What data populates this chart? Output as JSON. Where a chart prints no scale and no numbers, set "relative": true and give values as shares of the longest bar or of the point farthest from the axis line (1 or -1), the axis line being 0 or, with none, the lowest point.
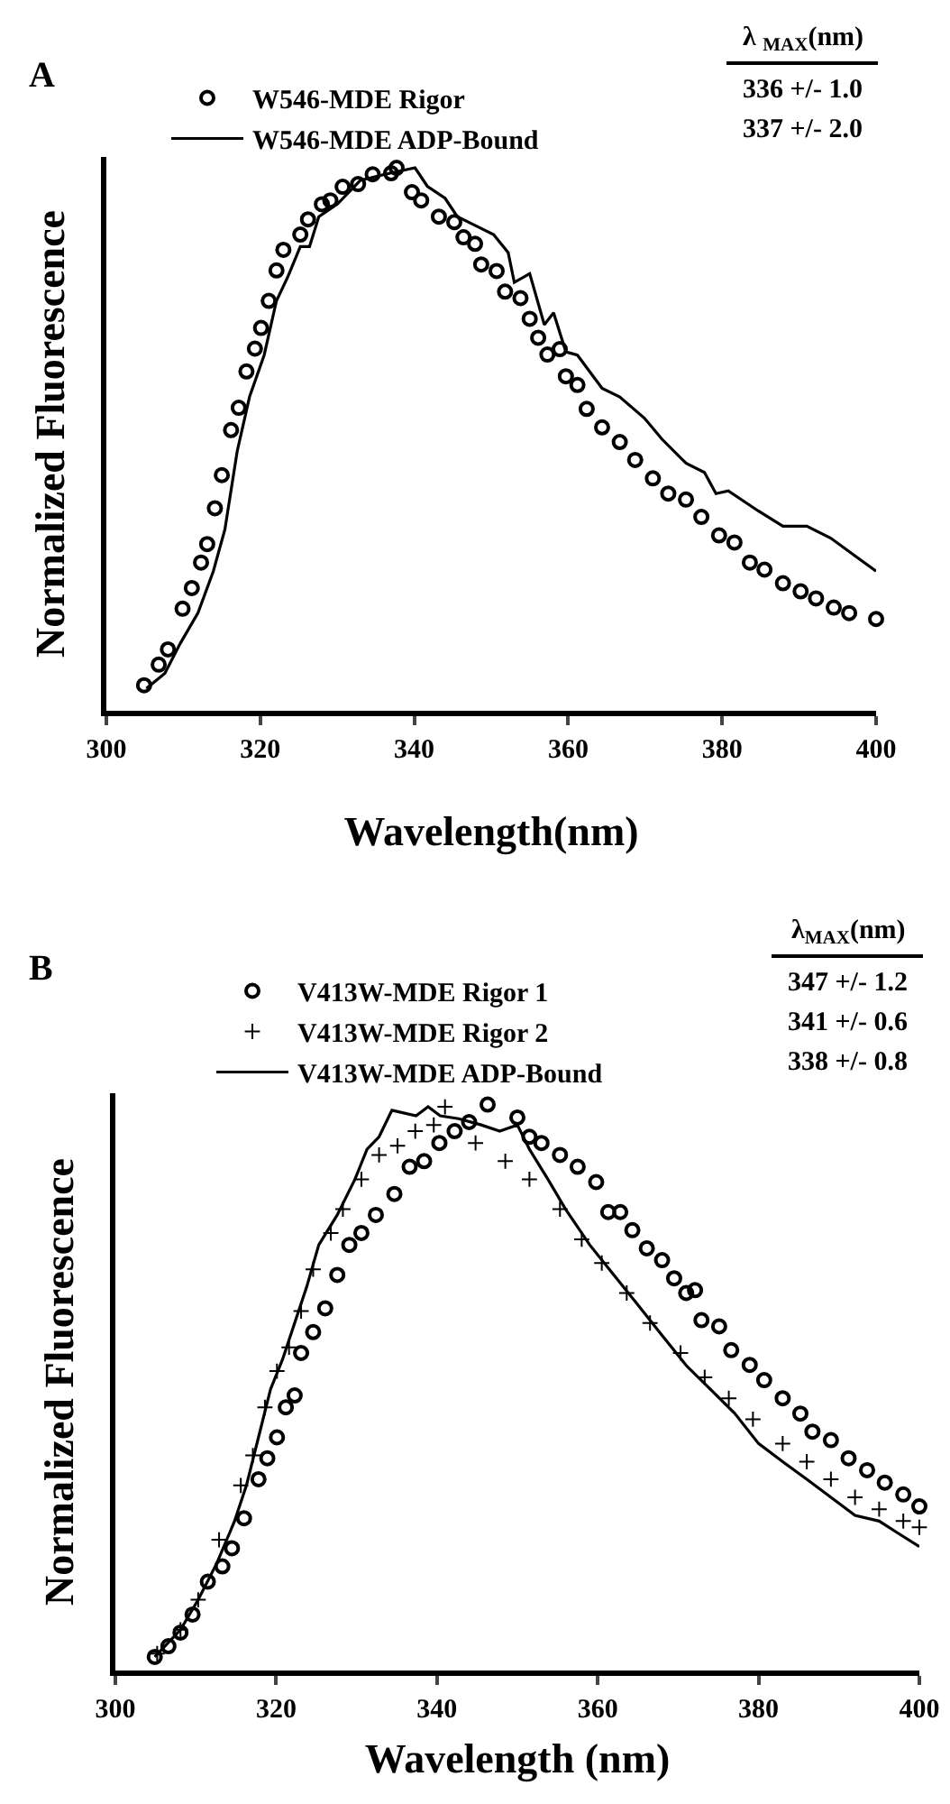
{
  "chart_data": [
    {
      "type": "line",
      "title": "A",
      "xlabel": "Wavelength(nm)",
      "ylabel": "Normalized Fluorescence",
      "relative": true,
      "xlim": [
        300,
        400
      ],
      "xticks": [
        300,
        320,
        340,
        360,
        380,
        400
      ],
      "legend": "top left",
      "annotations": [
        "λ $_{MAX}$(nm)",
        "336 +/- 1.0",
        "337 +/- 2.0"
      ],
      "series": [
        {
          "name": "W546-MDE Rigor",
          "type": "scatter",
          "marker": "circle",
          "color": "#000000",
          "x": [
            304.9,
            306.8,
            308,
            309.9,
            311.1,
            312.3,
            313.1,
            314.1,
            315,
            316.2,
            317.2,
            318.2,
            319.3,
            320.1,
            321.1,
            322.1,
            323,
            325.2,
            326.2,
            328,
            329.1,
            330.7,
            332.7,
            334.6,
            337,
            337.7,
            339.7,
            340.9,
            343.2,
            345.2,
            346.4,
            347.9,
            348.7,
            350.7,
            351.8,
            353.8,
            355,
            356.1,
            357.3,
            358.9,
            359.7,
            361.2,
            362.4,
            364.4,
            366.7,
            368.7,
            371,
            373,
            375.3,
            377.3,
            379.6,
            381.6,
            383.6,
            385.5,
            387.9,
            390.2,
            392.2,
            394.5,
            396.5,
            400
          ],
          "values": [
            0.047,
            0.085,
            0.113,
            0.188,
            0.226,
            0.273,
            0.307,
            0.373,
            0.434,
            0.517,
            0.558,
            0.625,
            0.667,
            0.705,
            0.755,
            0.811,
            0.849,
            0.877,
            0.905,
            0.933,
            0.94,
            0.965,
            0.97,
            0.988,
            0.99,
            1.0,
            0.955,
            0.94,
            0.91,
            0.9,
            0.872,
            0.86,
            0.822,
            0.81,
            0.772,
            0.76,
            0.722,
            0.687,
            0.656,
            0.666,
            0.616,
            0.6,
            0.556,
            0.522,
            0.495,
            0.462,
            0.428,
            0.4,
            0.389,
            0.357,
            0.323,
            0.31,
            0.273,
            0.26,
            0.235,
            0.22,
            0.207,
            0.19,
            0.18,
            0.169
          ]
        },
        {
          "name": "W546-MDE ADP-Bound",
          "line_style": "solid",
          "marker": "none",
          "color": "#000000",
          "x": [
            305.2,
            307.6,
            309.6,
            311.9,
            313.9,
            315.4,
            317,
            318.6,
            320.5,
            322.1,
            323.6,
            325.2,
            326.4,
            327.6,
            330,
            331.5,
            333,
            336.2,
            340.1,
            341.7,
            344,
            345.6,
            347.9,
            350.3,
            352.2,
            353,
            355,
            356.9,
            358.1,
            359.7,
            361.2,
            364.4,
            366.7,
            369.9,
            372.2,
            375.3,
            377.7,
            379.2,
            380.8,
            384.7,
            387.9,
            391,
            394.1,
            397.3,
            400
          ],
          "values": [
            0.041,
            0.069,
            0.124,
            0.18,
            0.257,
            0.334,
            0.478,
            0.578,
            0.655,
            0.755,
            0.8,
            0.855,
            0.855,
            0.91,
            0.933,
            0.955,
            0.977,
            0.988,
            1.0,
            0.966,
            0.944,
            0.91,
            0.894,
            0.877,
            0.844,
            0.789,
            0.805,
            0.711,
            0.733,
            0.661,
            0.655,
            0.594,
            0.578,
            0.539,
            0.5,
            0.456,
            0.439,
            0.4,
            0.405,
            0.368,
            0.34,
            0.34,
            0.318,
            0.285,
            0.257
          ]
        }
      ]
    },
    {
      "type": "line",
      "title": "B",
      "xlabel": "Wavelength (nm)",
      "ylabel": "Normalized Fluorescence",
      "relative": true,
      "xlim": [
        300,
        400
      ],
      "xticks": [
        300,
        320,
        340,
        360,
        380,
        400
      ],
      "legend": "top left",
      "annotations": [
        "λ$_{MAX}$(nm)",
        "347 +/- 1.2",
        "341 +/- 0.6",
        "338 +/- 0.8"
      ],
      "series": [
        {
          "name": "V413W-MDE Rigor 1",
          "type": "scatter",
          "marker": "circle",
          "color": "#000000",
          "x": [
            304.9,
            306.6,
            308.1,
            309.6,
            311.5,
            313.3,
            314.5,
            316,
            317.8,
            318.9,
            320.1,
            321.2,
            322.3,
            323.1,
            324.6,
            326.1,
            327.6,
            329.1,
            330.6,
            332.4,
            334.7,
            336.6,
            338.4,
            340.3,
            342.2,
            344,
            346.3,
            350,
            351.5,
            353,
            355.3,
            357.5,
            359.8,
            361.3,
            362.8,
            364.3,
            366.1,
            368,
            369.5,
            371,
            372.1,
            372.9,
            375.1,
            376.6,
            378.9,
            380.7,
            383,
            385.2,
            386.7,
            389,
            391.2,
            393.5,
            395.7,
            398,
            400
          ],
          "values": [
            0.024,
            0.043,
            0.067,
            0.099,
            0.157,
            0.184,
            0.216,
            0.269,
            0.338,
            0.375,
            0.412,
            0.465,
            0.486,
            0.561,
            0.598,
            0.64,
            0.699,
            0.752,
            0.773,
            0.805,
            0.842,
            0.89,
            0.9,
            0.932,
            0.953,
            0.969,
            1.0,
            0.977,
            0.943,
            0.932,
            0.911,
            0.89,
            0.863,
            0.81,
            0.81,
            0.778,
            0.746,
            0.725,
            0.693,
            0.667,
            0.672,
            0.619,
            0.608,
            0.566,
            0.54,
            0.513,
            0.481,
            0.454,
            0.422,
            0.407,
            0.375,
            0.354,
            0.332,
            0.311,
            0.29
          ]
        },
        {
          "name": "V413W-MDE Rigor 2",
          "type": "scatter",
          "marker": "cross",
          "color": "#000000",
          "x": [
            305.2,
            308.1,
            310.3,
            312.9,
            315.6,
            317.1,
            318.6,
            320.1,
            321.6,
            323.1,
            324.6,
            326.8,
            328.3,
            330.6,
            332.8,
            335.1,
            337.3,
            339.6,
            341,
            344.8,
            348.5,
            351.5,
            355.3,
            358,
            360.5,
            363.6,
            366.5,
            370.3,
            373.3,
            376.3,
            379.3,
            383,
            386,
            389,
            392,
            395,
            398,
            400
          ],
          "values": [
            0.03,
            0.072,
            0.125,
            0.231,
            0.327,
            0.38,
            0.465,
            0.529,
            0.571,
            0.635,
            0.709,
            0.773,
            0.815,
            0.868,
            0.911,
            0.927,
            0.953,
            0.964,
            0.996,
            0.932,
            0.9,
            0.868,
            0.815,
            0.762,
            0.72,
            0.667,
            0.614,
            0.561,
            0.518,
            0.481,
            0.444,
            0.401,
            0.369,
            0.338,
            0.306,
            0.285,
            0.264,
            0.253
          ]
        },
        {
          "name": "V413W-MDE ADP-Bound",
          "line_style": "solid",
          "marker": "none",
          "color": "#000000",
          "x": [
            304.9,
            308.1,
            310.3,
            312.6,
            314.8,
            316.3,
            317.8,
            319.3,
            320.8,
            322.3,
            323.8,
            325.3,
            327.6,
            329.8,
            331.3,
            332.8,
            334.4,
            337.4,
            338.9,
            340.4,
            342.7,
            345.5,
            347.8,
            350,
            351.5,
            353.8,
            356,
            359,
            362,
            365,
            368,
            371,
            374,
            377,
            380,
            383,
            386,
            389,
            392,
            395,
            397.3,
            400
          ],
          "values": [
            0.024,
            0.072,
            0.125,
            0.189,
            0.263,
            0.327,
            0.412,
            0.497,
            0.55,
            0.614,
            0.678,
            0.752,
            0.805,
            0.868,
            0.921,
            0.943,
            0.99,
            0.98,
            0.996,
            0.98,
            0.975,
            0.964,
            0.953,
            0.964,
            0.921,
            0.868,
            0.815,
            0.752,
            0.699,
            0.646,
            0.592,
            0.539,
            0.497,
            0.455,
            0.401,
            0.369,
            0.338,
            0.306,
            0.274,
            0.264,
            0.243,
            0.219
          ]
        }
      ]
    }
  ]
}
